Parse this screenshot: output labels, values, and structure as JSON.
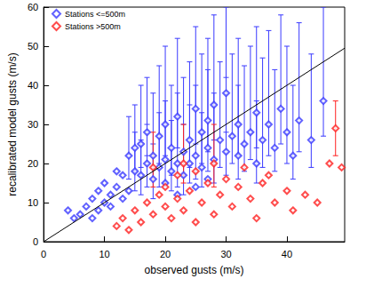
{
  "chart_data": {
    "type": "scatter",
    "x_label": "observed gusts (m/s)",
    "y_label": "recalibrated model gusts (m/s)",
    "xlim": [
      0,
      49.5
    ],
    "xticks": [
      0,
      10,
      20,
      30,
      40
    ],
    "ylim": [
      0,
      60
    ],
    "yticks": [
      0,
      10,
      20,
      30,
      40,
      50,
      60
    ],
    "grid": false,
    "legend": "upper left",
    "series": [
      {
        "name": "Stations <=500m",
        "type": "scatter",
        "color": "#3a3aff",
        "marker": "diamond",
        "x": [
          4,
          5,
          6,
          7,
          8,
          8,
          9,
          9,
          10,
          10,
          11,
          11,
          12,
          12,
          13,
          13,
          14,
          20,
          22,
          25,
          27,
          14,
          15,
          15,
          16,
          16,
          17,
          17,
          18,
          18,
          19,
          19,
          20,
          20,
          21,
          21,
          22,
          22,
          23,
          23,
          24,
          24,
          25,
          25,
          26,
          26,
          27,
          27,
          28,
          28,
          29,
          30,
          30,
          31,
          32,
          32,
          33,
          34,
          35,
          35,
          36,
          37,
          38,
          39,
          40,
          41,
          42,
          44,
          46
        ],
        "values": [
          8,
          6,
          7,
          9,
          6,
          11,
          8,
          13,
          10,
          15,
          9,
          12,
          14,
          18,
          11,
          17,
          13,
          15,
          12,
          14,
          16,
          22,
          18,
          24,
          17,
          25,
          20,
          28,
          16,
          22,
          19,
          27,
          21,
          30,
          18,
          24,
          20,
          32,
          23,
          17,
          26,
          20,
          22,
          34,
          19,
          28,
          24,
          31,
          21,
          35,
          26,
          23,
          38,
          27,
          22,
          30,
          25,
          28,
          20,
          33,
          26,
          30,
          24,
          34,
          28,
          22,
          31,
          26,
          36
        ],
        "y_low": [
          null,
          null,
          null,
          null,
          null,
          null,
          null,
          null,
          null,
          null,
          null,
          null,
          null,
          null,
          null,
          null,
          null,
          null,
          null,
          null,
          null,
          16,
          13,
          18,
          12,
          19,
          14,
          22,
          11,
          16,
          14,
          20,
          15,
          22,
          13,
          17,
          14,
          24,
          17,
          12,
          19,
          15,
          16,
          25,
          14,
          20,
          18,
          23,
          15,
          26,
          19,
          17,
          28,
          20,
          16,
          22,
          18,
          21,
          15,
          24,
          19,
          22,
          18,
          25,
          20,
          16,
          23,
          19,
          27
        ],
        "y_high": [
          null,
          null,
          null,
          null,
          null,
          null,
          null,
          null,
          null,
          null,
          null,
          null,
          null,
          null,
          null,
          null,
          null,
          null,
          null,
          null,
          null,
          32,
          28,
          35,
          26,
          40,
          30,
          42,
          25,
          38,
          33,
          45,
          36,
          50,
          31,
          40,
          38,
          52,
          42,
          30,
          46,
          35,
          40,
          55,
          33,
          48,
          44,
          52,
          38,
          58,
          46,
          42,
          60,
          48,
          40,
          52,
          45,
          50,
          36,
          55,
          47,
          54,
          44,
          58,
          50,
          40,
          56,
          48,
          60
        ]
      },
      {
        "name": "Stations >500m",
        "type": "scatter",
        "color": "#ff2020",
        "marker": "diamond",
        "x": [
          12,
          13,
          14,
          15,
          16,
          17,
          18,
          19,
          20,
          20,
          21,
          22,
          22,
          23,
          24,
          25,
          25,
          26,
          27,
          28,
          28,
          29,
          30,
          31,
          32,
          33,
          34,
          35,
          36,
          37,
          38,
          40,
          41,
          43,
          45,
          47,
          48,
          49,
          18,
          23
        ],
        "values": [
          4,
          6,
          3,
          8,
          5,
          10,
          7,
          12,
          9,
          14,
          6,
          17,
          11,
          8,
          13,
          18,
          5,
          10,
          15,
          7,
          20,
          12,
          16,
          9,
          14,
          19,
          11,
          6,
          15,
          17,
          10,
          13,
          8,
          12,
          10,
          20,
          29,
          19,
          19,
          20
        ],
        "y_low": [
          null,
          null,
          null,
          null,
          null,
          null,
          null,
          null,
          null,
          null,
          null,
          null,
          null,
          null,
          null,
          null,
          null,
          null,
          null,
          null,
          14,
          null,
          null,
          null,
          null,
          null,
          null,
          null,
          null,
          null,
          null,
          null,
          null,
          null,
          null,
          null,
          22,
          null,
          14,
          15
        ],
        "y_high": [
          null,
          null,
          null,
          null,
          null,
          null,
          null,
          null,
          null,
          null,
          null,
          null,
          null,
          null,
          null,
          null,
          null,
          null,
          null,
          null,
          30,
          null,
          null,
          null,
          null,
          null,
          null,
          null,
          null,
          null,
          null,
          null,
          null,
          null,
          null,
          null,
          36,
          null,
          28,
          30
        ]
      },
      {
        "type": "line",
        "color": "#000000",
        "line_style": "solid",
        "x": [
          0,
          49.5
        ],
        "values": [
          0,
          49.5
        ]
      }
    ]
  }
}
